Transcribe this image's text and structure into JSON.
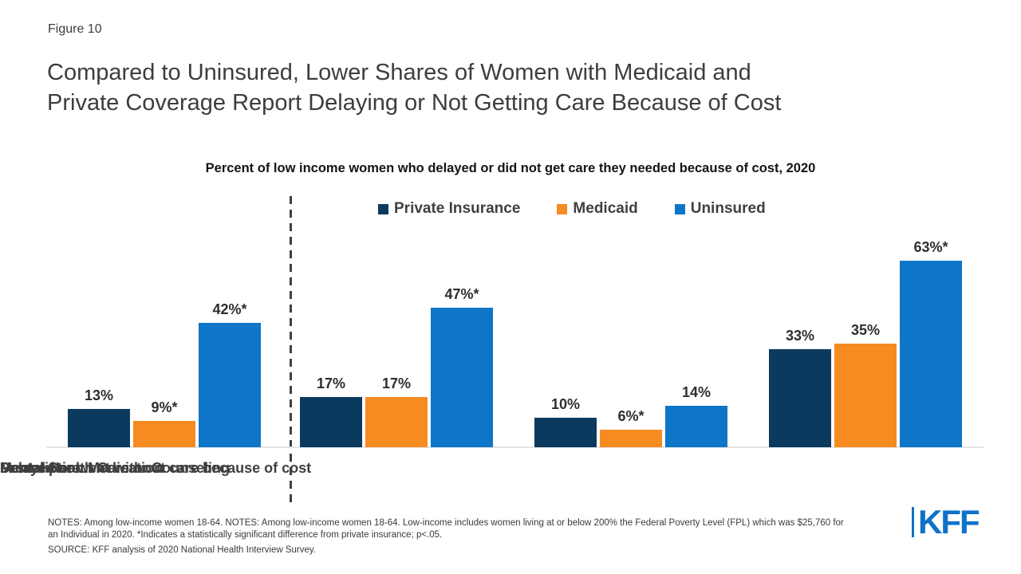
{
  "figure_label": "Figure 10",
  "title": {
    "line1": "Compared to Uninsured, Lower Shares of Women with Medicaid and",
    "line2": "Private Coverage Report Delaying or Not Getting Care Because of Cost"
  },
  "subtitle": "Percent of low income women who delayed or did not get care they needed because of cost, 2020",
  "chart_data": {
    "type": "bar",
    "unit": "percent",
    "categories": [
      "Delayed or went without care because of cost",
      "Prescription Medication",
      "Mental Health Care or Counseling",
      "Dental Care"
    ],
    "series": [
      {
        "name": "Private Insurance",
        "color": "#0C3A5E",
        "values": [
          13,
          17,
          10,
          33
        ],
        "labels": [
          "13%",
          "17%",
          "10%",
          "33%"
        ]
      },
      {
        "name": "Medicaid",
        "color": "#F68B22",
        "values": [
          9,
          17,
          6,
          35
        ],
        "labels": [
          "9%*",
          "17%",
          "6%*",
          "35%"
        ]
      },
      {
        "name": "Uninsured",
        "color": "#0D76C8",
        "values": [
          42,
          47,
          14,
          63
        ],
        "labels": [
          "42%*",
          "47%*",
          "14%",
          "63%*"
        ]
      }
    ],
    "ylim": [
      0,
      70
    ],
    "grid": false,
    "legend_position": "top",
    "divider_after_category_index": 0
  },
  "notes": {
    "line1": "NOTES: Among low-income women 18-64. NOTES: Among low-income women 18-64. Low-income includes women living at or below 200% the Federal Poverty Level (FPL) which was $25,760 for",
    "line2": "an Individual in 2020. *Indicates a statistically significant difference from private insurance; p<.05.",
    "source": "SOURCE: KFF analysis of 2020 National Health Interview Survey."
  },
  "logo": {
    "text": "KFF",
    "color": "#0E72C8"
  }
}
